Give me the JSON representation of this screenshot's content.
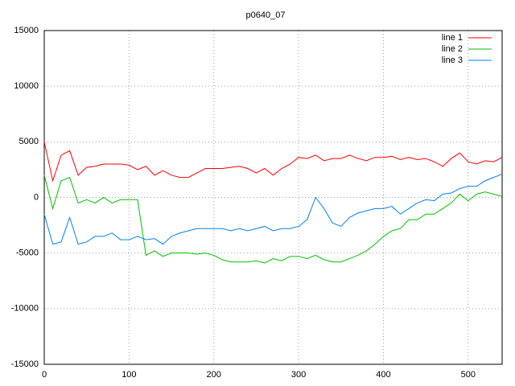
{
  "chart_data": {
    "type": "line",
    "title": "p0640_07",
    "x": [
      0,
      10,
      20,
      30,
      40,
      50,
      60,
      70,
      80,
      90,
      100,
      110,
      120,
      130,
      140,
      150,
      160,
      170,
      180,
      190,
      200,
      210,
      220,
      230,
      240,
      250,
      260,
      270,
      280,
      290,
      300,
      310,
      320,
      330,
      340,
      350,
      360,
      370,
      380,
      390,
      400,
      410,
      420,
      430,
      440,
      450,
      460,
      470,
      480,
      490,
      500,
      510,
      520,
      530,
      540
    ],
    "series": [
      {
        "name": "line 1",
        "color": "#ff0000",
        "values": [
          5000,
          1500,
          3800,
          4200,
          2000,
          2700,
          2800,
          3000,
          3000,
          3000,
          2900,
          2500,
          2800,
          2000,
          2400,
          2000,
          1800,
          1800,
          2200,
          2600,
          2600,
          2600,
          2700,
          2800,
          2600,
          2200,
          2600,
          2000,
          2600,
          3000,
          3600,
          3500,
          3800,
          3300,
          3500,
          3500,
          3800,
          3500,
          3300,
          3600,
          3600,
          3700,
          3400,
          3600,
          3400,
          3500,
          3200,
          2800,
          3500,
          4000,
          3200,
          3000,
          3300,
          3200,
          3600
        ]
      },
      {
        "name": "line 2",
        "color": "#00c000",
        "values": [
          2000,
          -1000,
          1500,
          1800,
          -500,
          -200,
          -500,
          0,
          -500,
          -200,
          -200,
          -200,
          -5200,
          -4800,
          -5300,
          -5000,
          -5000,
          -5000,
          -5100,
          -5000,
          -5200,
          -5600,
          -5800,
          -5800,
          -5800,
          -5700,
          -5900,
          -5500,
          -5700,
          -5300,
          -5300,
          -5500,
          -5200,
          -5600,
          -5800,
          -5800,
          -5500,
          -5200,
          -4800,
          -4200,
          -3500,
          -3000,
          -2800,
          -2000,
          -2000,
          -1500,
          -1500,
          -1000,
          -500,
          300,
          -300,
          300,
          500,
          300,
          100
        ]
      },
      {
        "name": "line 3",
        "color": "#0080ff",
        "values": [
          -1500,
          -4200,
          -4000,
          -1800,
          -4200,
          -4000,
          -3500,
          -3500,
          -3200,
          -3800,
          -3800,
          -3500,
          -3800,
          -3700,
          -4200,
          -3500,
          -3200,
          -3000,
          -2800,
          -2800,
          -2800,
          -2800,
          -3000,
          -2800,
          -3000,
          -2800,
          -2600,
          -3000,
          -2800,
          -2800,
          -2600,
          -2000,
          0,
          -1000,
          -2300,
          -2600,
          -1800,
          -1400,
          -1200,
          -1000,
          -1000,
          -800,
          -1500,
          -1000,
          -500,
          -200,
          -300,
          300,
          400,
          800,
          1000,
          1000,
          1500,
          1800,
          2100
        ]
      }
    ],
    "xlim": [
      0,
      540
    ],
    "ylim": [
      -15000,
      15000
    ],
    "xticks": [
      0,
      100,
      200,
      300,
      400,
      500
    ],
    "yticks": [
      -15000,
      -10000,
      -5000,
      0,
      5000,
      10000,
      15000
    ],
    "grid": true,
    "legend": "top-right"
  }
}
